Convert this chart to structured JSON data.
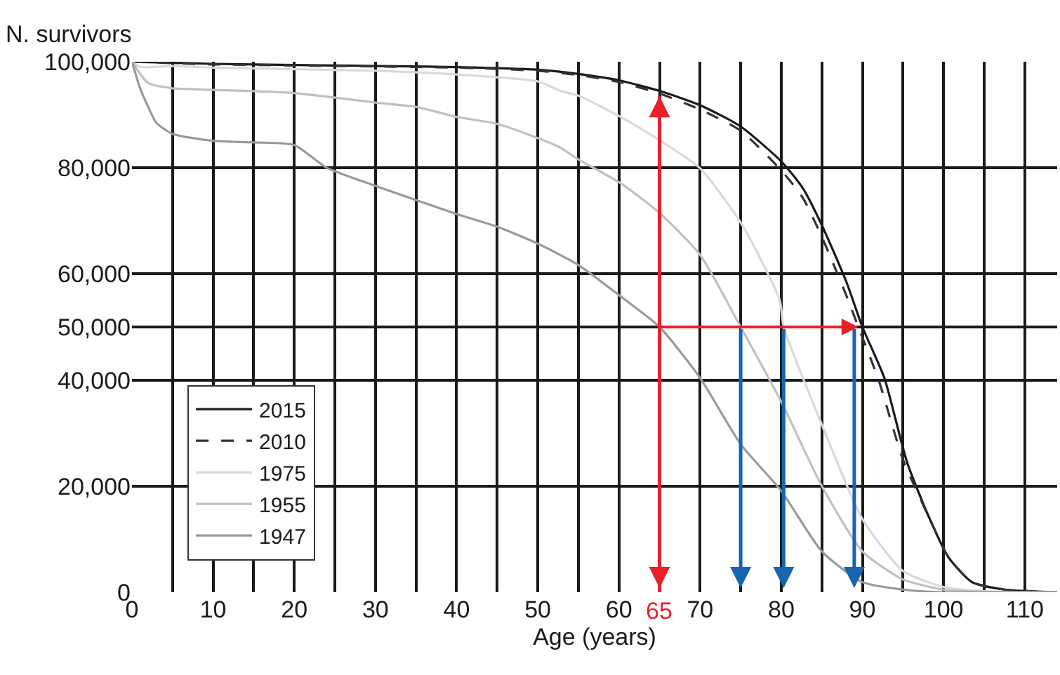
{
  "chart_data": {
    "type": "line",
    "ylabel": "N. survivors",
    "xlabel": "Age (years)",
    "xlim": [
      0,
      114
    ],
    "ylim": [
      0,
      100000
    ],
    "xticks": [
      0,
      {
        "value": 5,
        "label": null
      },
      10,
      {
        "value": 15,
        "label": null
      },
      20,
      {
        "value": 25,
        "label": null
      },
      30,
      {
        "value": 35,
        "label": null
      },
      40,
      {
        "value": 45,
        "label": null
      },
      50,
      {
        "value": 55,
        "label": null
      },
      60,
      {
        "value": 65,
        "label": null
      },
      70,
      {
        "value": 75,
        "label": null
      },
      80,
      {
        "value": 85,
        "label": null
      },
      90,
      {
        "value": 95,
        "label": null
      },
      100,
      {
        "value": 105,
        "label": null
      },
      110
    ],
    "yticks": [
      0,
      {
        "value": 20000,
        "label": "20,000"
      },
      {
        "value": 40000,
        "label": "40,000"
      },
      {
        "value": 50000,
        "label": "50,000"
      },
      {
        "value": 60000,
        "label": "60,000"
      },
      {
        "value": 80000,
        "label": "80,000"
      },
      {
        "value": 100000,
        "label": "100,000"
      }
    ],
    "grid": true,
    "legend": "bottom left",
    "ref_lines": [
      {
        "axis": "x",
        "value": 65,
        "label": "65",
        "color": "#e8202a"
      }
    ],
    "series": [
      {
        "name": "2015",
        "color": "#1a1a1a",
        "line_style": "solid",
        "x": [
          0,
          10,
          20,
          30,
          40,
          50,
          55,
          60,
          65,
          70,
          75,
          80,
          82.6,
          85,
          88,
          90,
          92.7,
          95.5,
          98.3,
          100.6,
          103.5,
          107.5,
          114
        ],
        "values": [
          100000,
          99600,
          99400,
          99200,
          99000,
          98500,
          97700,
          96500,
          94500,
          91800,
          87800,
          81200,
          76300,
          69200,
          58600,
          50000,
          40400,
          24500,
          13800,
          6600,
          1900,
          500,
          0
        ]
      },
      {
        "name": "2010",
        "color": "#333333",
        "line_style": "dashed",
        "x": [
          0,
          10,
          20,
          30,
          40,
          50,
          55,
          60,
          65,
          70,
          75,
          80,
          82.6,
          85,
          88,
          89.5,
          92,
          95,
          98.3,
          100.6,
          103.5,
          107.5,
          114
        ],
        "values": [
          100000,
          99500,
          99300,
          99100,
          98900,
          98300,
          97500,
          96200,
          94000,
          91000,
          87000,
          79500,
          74500,
          67000,
          56000,
          50000,
          40000,
          25000,
          13800,
          6600,
          1900,
          500,
          0
        ]
      },
      {
        "name": "1975",
        "color": "#d9d9d9",
        "line_style": "solid",
        "x": [
          0,
          1,
          5,
          10,
          30,
          40,
          50,
          52.8,
          55,
          60.2,
          65,
          70,
          75.2,
          79.8,
          80.3,
          85,
          90,
          95,
          100,
          105,
          114
        ],
        "values": [
          100000,
          99000,
          99200,
          98900,
          98300,
          97600,
          96300,
          94500,
          93600,
          89600,
          85200,
          79900,
          69200,
          55100,
          50000,
          31600,
          13800,
          4000,
          1000,
          200,
          0
        ]
      },
      {
        "name": "1955",
        "color": "#c0c0c0",
        "line_style": "solid",
        "x": [
          0,
          2,
          5,
          10,
          20,
          30,
          35,
          40,
          45,
          50,
          52.8,
          55,
          60.2,
          65,
          70,
          75,
          80,
          85,
          90,
          95,
          100,
          105,
          114
        ],
        "values": [
          100000,
          96000,
          95000,
          94700,
          94100,
          92300,
          91500,
          89600,
          88300,
          85600,
          83800,
          81600,
          77100,
          71500,
          63600,
          50000,
          35900,
          20000,
          7700,
          2400,
          500,
          100,
          0
        ]
      },
      {
        "name": "1947",
        "color": "#999999",
        "line_style": "solid",
        "x": [
          0,
          1,
          2,
          3,
          5,
          10,
          15,
          20,
          24,
          30,
          40,
          45,
          50,
          55,
          60,
          65,
          70,
          75,
          80,
          85,
          90,
          95,
          100,
          114
        ],
        "values": [
          100000,
          95000,
          91500,
          88500,
          86400,
          85100,
          84800,
          84300,
          80000,
          76600,
          71300,
          68900,
          65700,
          61700,
          56000,
          50000,
          40400,
          27900,
          19100,
          7700,
          1900,
          500,
          0,
          0
        ]
      }
    ]
  }
}
